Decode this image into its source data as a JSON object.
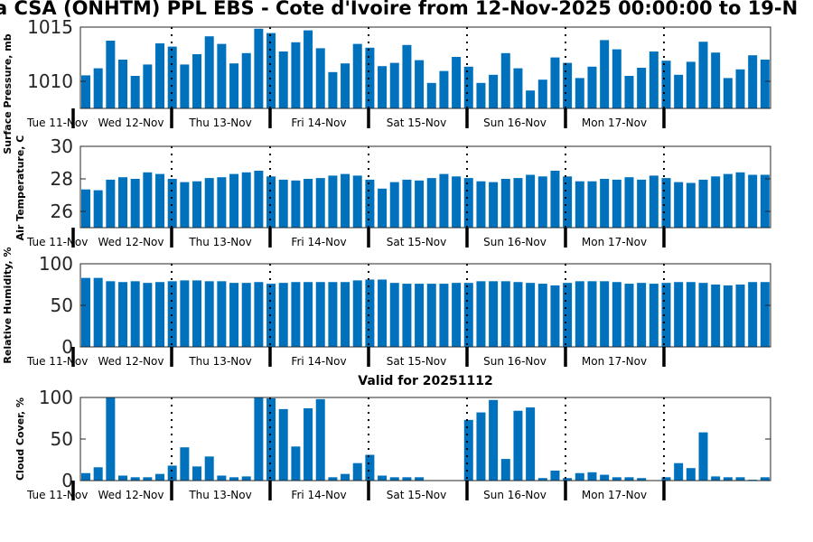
{
  "title": "a CSA (ONHTM) PPL EBS  - Cote d'Ivoire from 12-Nov-2025 00:00:00 to 19-N",
  "subtitle": "Valid for 20251112",
  "bar_color": "#0072BD",
  "day_labels": [
    "Tue 11-Nov",
    "Wed 12-Nov",
    "Thu 13-Nov",
    "Fri 14-Nov",
    "Sat 15-Nov",
    "Sun 16-Nov",
    "Mon 17-Nov"
  ],
  "chart_data": [
    {
      "type": "bar",
      "ylabel": "Surface Pressure, mb",
      "ylim": [
        1007.5,
        1015
      ],
      "yticks": [
        1010,
        1015
      ],
      "values": [
        1010.55,
        1011.2,
        1013.75,
        1012.0,
        1010.5,
        1011.55,
        1013.5,
        1013.2,
        1011.55,
        1012.5,
        1014.15,
        1013.45,
        1011.65,
        1012.6,
        1014.85,
        1014.45,
        1012.75,
        1013.6,
        1014.7,
        1013.05,
        1010.85,
        1011.65,
        1013.45,
        1013.1,
        1011.4,
        1011.7,
        1013.35,
        1011.95,
        1009.85,
        1010.95,
        1012.25,
        1011.35,
        1009.85,
        1010.6,
        1012.6,
        1011.2,
        1009.15,
        1010.15,
        1012.2,
        1011.7,
        1010.3,
        1011.35,
        1013.8,
        1012.95,
        1010.5,
        1011.25,
        1012.75,
        1011.9,
        1010.6,
        1011.8,
        1013.65,
        1012.65,
        1010.3,
        1011.1,
        1012.4,
        1012.0
      ]
    },
    {
      "type": "bar",
      "ylabel": "Air Temperature, C",
      "ylim": [
        25,
        30
      ],
      "yticks": [
        26,
        28,
        30
      ],
      "values": [
        27.35,
        27.3,
        27.95,
        28.1,
        28.0,
        28.4,
        28.3,
        28.0,
        27.8,
        27.85,
        28.05,
        28.1,
        28.3,
        28.4,
        28.5,
        28.15,
        27.95,
        27.9,
        28.0,
        28.05,
        28.2,
        28.3,
        28.2,
        27.95,
        27.4,
        27.8,
        27.95,
        27.9,
        28.05,
        28.3,
        28.15,
        28.05,
        27.85,
        27.8,
        28.0,
        28.05,
        28.25,
        28.15,
        28.5,
        28.15,
        27.85,
        27.85,
        28.0,
        27.95,
        28.1,
        27.95,
        28.2,
        28.05,
        27.8,
        27.75,
        27.95,
        28.15,
        28.3,
        28.4,
        28.25,
        28.25
      ]
    },
    {
      "type": "bar",
      "ylabel": "Relative Humidity, %",
      "ylim": [
        0,
        100
      ],
      "yticks": [
        0,
        50,
        100
      ],
      "values": [
        83,
        83,
        79,
        78,
        79,
        77,
        78,
        79,
        80,
        80,
        79,
        79,
        77,
        77,
        78,
        76,
        77,
        78,
        78,
        78,
        78,
        78,
        80,
        81,
        81,
        77,
        76,
        76,
        76,
        76,
        77,
        77,
        79,
        79,
        79,
        78,
        77,
        76,
        74,
        77,
        79,
        79,
        79,
        78,
        76,
        77,
        76,
        77,
        78,
        78,
        77,
        75,
        74,
        75,
        78,
        78
      ]
    },
    {
      "type": "bar",
      "ylabel": "Cloud Cover, %",
      "ylim": [
        0,
        100
      ],
      "yticks": [
        0,
        50,
        100
      ],
      "values": [
        9,
        16,
        100,
        6,
        4,
        4,
        8,
        18,
        40,
        17,
        29,
        6,
        4,
        5,
        100,
        99,
        86,
        41,
        87,
        98,
        4,
        8,
        21,
        31,
        6,
        4,
        4,
        4,
        0,
        0,
        0,
        73,
        82,
        97,
        26,
        84,
        88,
        3,
        12,
        3,
        9,
        10,
        7,
        4,
        4,
        3,
        0,
        4,
        21,
        15,
        58,
        5,
        4,
        4,
        1,
        4
      ]
    }
  ]
}
